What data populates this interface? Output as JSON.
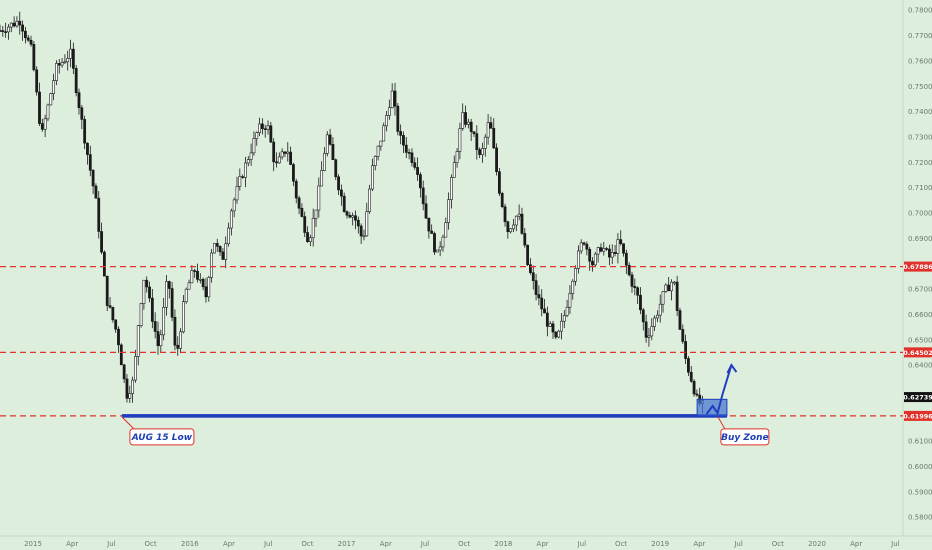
{
  "colors": {
    "background": "#ddeedd",
    "candle_up": "#ffffff",
    "candle_down": "#1a1a1a",
    "level_line": "#e0322a",
    "low_line": "#1f3fbf",
    "zone_fill": "#3f6fd0",
    "arrow": "#1f3fbf",
    "label_bg": "#e0322a",
    "price_bg": "#111111"
  },
  "chart_data": {
    "type": "candlestick",
    "x_ticks": [
      "2015",
      "Apr",
      "Jul",
      "Oct",
      "2016",
      "Apr",
      "Jul",
      "Oct",
      "2017",
      "Apr",
      "Jul",
      "Oct",
      "2018",
      "Apr",
      "Jul",
      "Oct",
      "2019",
      "Apr",
      "Jul",
      "Oct",
      "2020",
      "Apr",
      "Jul"
    ],
    "y_ticks": [
      "0.78000",
      "0.77000",
      "0.76000",
      "0.75000",
      "0.74000",
      "0.73000",
      "0.72000",
      "0.71000",
      "0.70000",
      "0.69000",
      "0.67000",
      "0.66000",
      "0.65000",
      "0.64000",
      "0.61000",
      "0.60000",
      "0.59000",
      "0.58000"
    ],
    "ylim": [
      0.575,
      0.785
    ],
    "levels": [
      {
        "label": "0.67886",
        "value": 0.67886,
        "style": "dashed",
        "color": "#e0322a"
      },
      {
        "label": "0.64502",
        "value": 0.64502,
        "style": "dashed",
        "color": "#e0322a"
      },
      {
        "label": "0.61996",
        "value": 0.61996,
        "style": "dashed",
        "color": "#e0322a"
      }
    ],
    "current_price": {
      "label": "0.62739",
      "value": 0.62739
    },
    "support_line": {
      "value": 0.61996,
      "from_x": 0.135,
      "to_x": 0.805
    },
    "annotations": [
      {
        "text": "AUG 15 Low",
        "anchor_x": 0.135
      },
      {
        "text": "Buy Zone",
        "anchor_x": 0.795
      }
    ],
    "buy_zone": {
      "x_start": 0.772,
      "x_end": 0.805,
      "y_low": 0.61996,
      "y_high": 0.6265
    },
    "arrow": {
      "x_from": 0.798,
      "y_from": 0.6215,
      "x_to": 0.81,
      "y_to": 0.64
    },
    "price_path": [
      [
        0.0,
        0.772
      ],
      [
        0.022,
        0.776
      ],
      [
        0.035,
        0.764
      ],
      [
        0.046,
        0.73
      ],
      [
        0.062,
        0.757
      ],
      [
        0.078,
        0.763
      ],
      [
        0.092,
        0.733
      ],
      [
        0.106,
        0.705
      ],
      [
        0.118,
        0.666
      ],
      [
        0.13,
        0.652
      ],
      [
        0.14,
        0.628
      ],
      [
        0.148,
        0.634
      ],
      [
        0.154,
        0.66
      ],
      [
        0.16,
        0.676
      ],
      [
        0.168,
        0.66
      ],
      [
        0.176,
        0.646
      ],
      [
        0.186,
        0.676
      ],
      [
        0.195,
        0.642
      ],
      [
        0.205,
        0.668
      ],
      [
        0.215,
        0.678
      ],
      [
        0.228,
        0.667
      ],
      [
        0.236,
        0.69
      ],
      [
        0.246,
        0.681
      ],
      [
        0.255,
        0.7
      ],
      [
        0.265,
        0.712
      ],
      [
        0.276,
        0.723
      ],
      [
        0.286,
        0.733
      ],
      [
        0.296,
        0.735
      ],
      [
        0.305,
        0.718
      ],
      [
        0.318,
        0.726
      ],
      [
        0.33,
        0.703
      ],
      [
        0.342,
        0.689
      ],
      [
        0.352,
        0.706
      ],
      [
        0.362,
        0.731
      ],
      [
        0.372,
        0.715
      ],
      [
        0.382,
        0.701
      ],
      [
        0.392,
        0.699
      ],
      [
        0.402,
        0.689
      ],
      [
        0.412,
        0.717
      ],
      [
        0.424,
        0.732
      ],
      [
        0.434,
        0.748
      ],
      [
        0.442,
        0.73
      ],
      [
        0.452,
        0.724
      ],
      [
        0.462,
        0.718
      ],
      [
        0.472,
        0.698
      ],
      [
        0.484,
        0.683
      ],
      [
        0.492,
        0.694
      ],
      [
        0.502,
        0.717
      ],
      [
        0.512,
        0.738
      ],
      [
        0.522,
        0.733
      ],
      [
        0.532,
        0.721
      ],
      [
        0.542,
        0.737
      ],
      [
        0.552,
        0.711
      ],
      [
        0.562,
        0.693
      ],
      [
        0.574,
        0.7
      ],
      [
        0.584,
        0.68
      ],
      [
        0.594,
        0.668
      ],
      [
        0.606,
        0.657
      ],
      [
        0.616,
        0.649
      ],
      [
        0.626,
        0.661
      ],
      [
        0.636,
        0.678
      ],
      [
        0.646,
        0.69
      ],
      [
        0.656,
        0.68
      ],
      [
        0.666,
        0.687
      ],
      [
        0.676,
        0.682
      ],
      [
        0.686,
        0.689
      ],
      [
        0.696,
        0.676
      ],
      [
        0.706,
        0.667
      ],
      [
        0.716,
        0.651
      ],
      [
        0.726,
        0.659
      ],
      [
        0.736,
        0.669
      ],
      [
        0.746,
        0.674
      ],
      [
        0.752,
        0.656
      ],
      [
        0.76,
        0.641
      ],
      [
        0.766,
        0.634
      ],
      [
        0.772,
        0.626
      ],
      [
        0.778,
        0.624
      ]
    ],
    "seed": 7
  }
}
